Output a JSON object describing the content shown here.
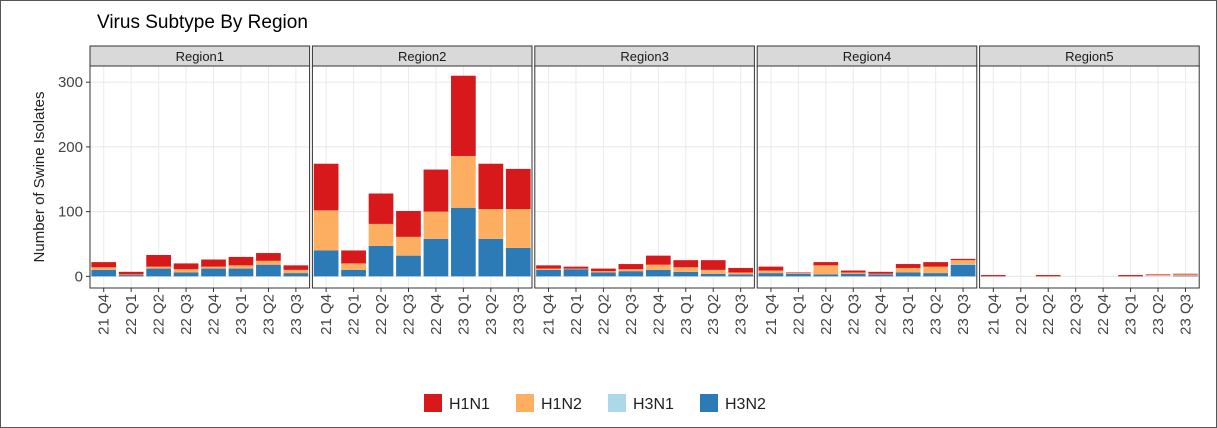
{
  "chart_data": {
    "type": "bar",
    "stacked": true,
    "title": "Virus Subtype By Region",
    "ylabel": "Number of Swine Isolates",
    "facets": [
      "Region1",
      "Region2",
      "Region3",
      "Region4",
      "Region5"
    ],
    "categories": [
      "21 Q4",
      "22 Q1",
      "22 Q2",
      "22 Q3",
      "22 Q4",
      "23 Q1",
      "23 Q2",
      "23 Q3"
    ],
    "ylim": [
      -18,
      325
    ],
    "yticks": [
      0,
      100,
      200,
      300
    ],
    "grid": true,
    "legend": "bottom",
    "series": [
      {
        "name": "H1N1",
        "color": "#d7191c",
        "values": [
          [
            8,
            4,
            18,
            9,
            11,
            13,
            12,
            7
          ],
          [
            72,
            20,
            47,
            40,
            65,
            124,
            70,
            62
          ],
          [
            5,
            3,
            4,
            8,
            14,
            11,
            15,
            7
          ],
          [
            6,
            1,
            5,
            3,
            3,
            6,
            7,
            2
          ],
          [
            2,
            0,
            2,
            0,
            0,
            2,
            1,
            1
          ]
        ]
      },
      {
        "name": "H1N2",
        "color": "#fdae61",
        "values": [
          [
            4,
            1,
            3,
            5,
            3,
            5,
            6,
            5
          ],
          [
            62,
            10,
            34,
            29,
            42,
            80,
            46,
            60
          ],
          [
            2,
            1,
            2,
            3,
            8,
            7,
            6,
            3
          ],
          [
            4,
            1,
            14,
            2,
            1,
            7,
            10,
            6
          ],
          [
            0,
            0,
            0,
            0,
            0,
            0,
            1,
            2
          ]
        ]
      },
      {
        "name": "H3N1",
        "color": "#abd9e9",
        "values": [
          [
            0,
            0,
            0,
            0,
            0,
            0,
            0,
            0
          ],
          [
            0,
            0,
            0,
            0,
            0,
            0,
            0,
            0
          ],
          [
            0,
            0,
            0,
            0,
            0,
            0,
            0,
            0
          ],
          [
            0,
            0,
            0,
            0,
            0,
            0,
            0,
            1
          ],
          [
            0,
            0,
            0,
            0,
            0,
            0,
            1,
            0
          ]
        ]
      },
      {
        "name": "H3N2",
        "color": "#2c7bb6",
        "values": [
          [
            10,
            2,
            12,
            6,
            12,
            12,
            18,
            5
          ],
          [
            40,
            10,
            47,
            32,
            58,
            106,
            58,
            44
          ],
          [
            10,
            11,
            6,
            8,
            10,
            7,
            4,
            3
          ],
          [
            5,
            4,
            3,
            4,
            3,
            6,
            5,
            18
          ],
          [
            0,
            0,
            0,
            0,
            0,
            0,
            0,
            1
          ]
        ]
      }
    ]
  }
}
